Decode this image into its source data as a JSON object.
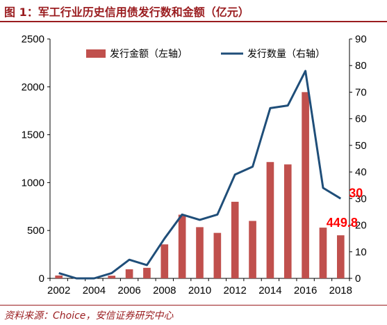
{
  "header": {
    "title": "图 1：军工行业历史信用债发行数和金额（亿元）"
  },
  "footer": {
    "source": "资料来源：Choice，安信证券研究中心"
  },
  "colors": {
    "bar": "#c0504d",
    "line": "#1f4e79",
    "label_red": "#ff0000",
    "accent": "#9a1c1f"
  },
  "chart_data": {
    "type": "bar+line",
    "x": [
      2002,
      2003,
      2004,
      2005,
      2006,
      2007,
      2008,
      2009,
      2010,
      2011,
      2012,
      2013,
      2014,
      2015,
      2016,
      2017,
      2018
    ],
    "x_tick_labels": [
      "2002",
      "2004",
      "2006",
      "2008",
      "2010",
      "2012",
      "2014",
      "2016",
      "2018"
    ],
    "series": [
      {
        "name": "发行金额（左轴）",
        "type": "bar",
        "axis": "left",
        "values": [
          30,
          5,
          5,
          28,
          95,
          110,
          355,
          665,
          535,
          475,
          800,
          600,
          1215,
          1190,
          1945,
          530,
          449.8
        ]
      },
      {
        "name": "发行数量（右轴）",
        "type": "line",
        "axis": "right",
        "values": [
          2,
          0,
          0,
          2,
          7,
          5,
          15,
          24,
          22,
          24,
          39,
          42,
          64,
          65,
          78,
          34,
          30
        ]
      }
    ],
    "y_left": {
      "min": 0,
      "max": 2500,
      "ticks": [
        "0",
        "500",
        "1000",
        "1500",
        "2000",
        "2500"
      ]
    },
    "y_right": {
      "min": 0,
      "max": 90,
      "ticks": [
        "0",
        "10",
        "20",
        "30",
        "40",
        "50",
        "60",
        "70",
        "80",
        "90"
      ]
    },
    "annotations": [
      {
        "text": "449.8",
        "series": "bar",
        "x": 2018
      },
      {
        "text": "30",
        "series": "line",
        "x": 2018
      }
    ],
    "legend_position": "top",
    "grid": false
  }
}
